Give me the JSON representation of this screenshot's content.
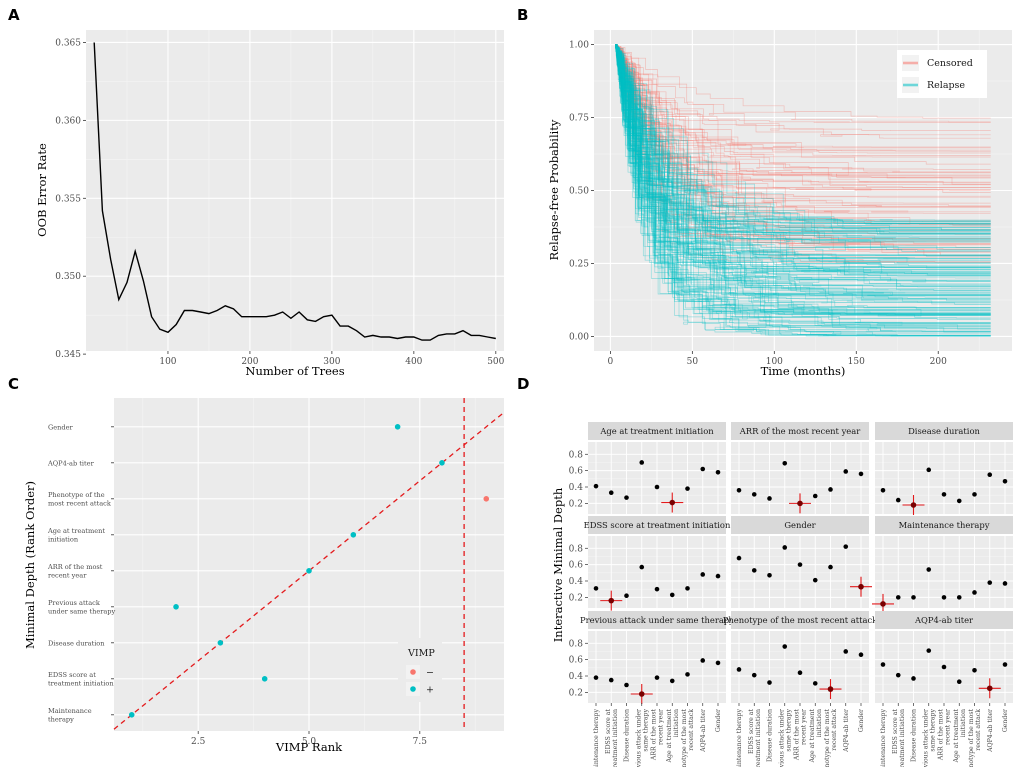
{
  "panels": {
    "A": {
      "letter": "A",
      "chart_data": {
        "type": "line",
        "xlabel": "Number of Trees",
        "ylabel": "OOB Error Rate",
        "xlim": [
          0,
          510
        ],
        "ylim": [
          0.3452,
          0.3658
        ],
        "xticks": [
          100,
          200,
          300,
          400,
          500
        ],
        "yticks": [
          0.345,
          0.35,
          0.355,
          0.36,
          0.365
        ],
        "ytick_labels": [
          "0.345",
          "0.350",
          "0.355",
          "0.360",
          "0.365"
        ],
        "x": [
          10,
          20,
          30,
          40,
          50,
          60,
          70,
          80,
          90,
          100,
          110,
          120,
          130,
          140,
          150,
          160,
          170,
          180,
          190,
          200,
          210,
          220,
          230,
          240,
          250,
          260,
          270,
          280,
          290,
          300,
          310,
          320,
          330,
          340,
          350,
          360,
          370,
          380,
          390,
          400,
          410,
          420,
          430,
          440,
          450,
          460,
          470,
          480,
          490,
          500
        ],
        "y": [
          0.365,
          0.3542,
          0.3511,
          0.3485,
          0.3496,
          0.3516,
          0.3497,
          0.3474,
          0.3466,
          0.3464,
          0.3469,
          0.3478,
          0.3478,
          0.3477,
          0.3476,
          0.3478,
          0.3481,
          0.3479,
          0.3474,
          0.3474,
          0.3474,
          0.3474,
          0.3475,
          0.3477,
          0.3473,
          0.3477,
          0.3472,
          0.3471,
          0.3474,
          0.3475,
          0.3468,
          0.3468,
          0.3465,
          0.3461,
          0.3462,
          0.3461,
          0.3461,
          0.346,
          0.3461,
          0.3461,
          0.3459,
          0.3459,
          0.3462,
          0.3463,
          0.3463,
          0.3465,
          0.3462,
          0.3462,
          0.3461,
          0.346
        ]
      }
    },
    "B": {
      "letter": "B",
      "chart_data": {
        "type": "line",
        "xlabel": "Time (months)",
        "ylabel": "Relapse-free Probability",
        "xlim": [
          -10,
          245
        ],
        "ylim": [
          -0.05,
          1.05
        ],
        "xticks": [
          0,
          50,
          100,
          150,
          200
        ],
        "yticks": [
          0,
          0.25,
          0.5,
          0.75,
          1.0
        ],
        "ytick_labels": [
          "0.00",
          "0.25",
          "0.50",
          "0.75",
          "1.00"
        ],
        "legend": [
          {
            "label": "Censored",
            "color": "#F8766D"
          },
          {
            "label": "Relapse",
            "color": "#00BFC4"
          }
        ],
        "legend_position": "top-right",
        "series_groups": [
          {
            "name": "Censored",
            "color": "#F8766D",
            "count": 70,
            "plateau_min": 0.25,
            "plateau_max": 0.76
          },
          {
            "name": "Relapse",
            "color": "#00BFC4",
            "count": 160,
            "plateau_min": 0.0,
            "plateau_max": 0.4
          }
        ],
        "x_start": 3,
        "x_end": 232
      }
    },
    "C": {
      "letter": "C",
      "chart_data": {
        "type": "scatter",
        "xlabel": "VIMP Rank",
        "ylabel": "Minimal Depth (Rank Order)",
        "xlim": [
          0.6,
          9.4
        ],
        "ylim": [
          0.55,
          9.8
        ],
        "xticks": [
          2.5,
          5.0,
          7.5
        ],
        "xtick_labels": [
          "2.5",
          "5.0",
          "7.5"
        ],
        "categories": [
          "Maintenance therapy",
          "EDSS score at treatment initiation",
          "Disease duration",
          "Previous attack under same therapy",
          "ARR of the most recent year",
          "Age at treatment initiation",
          "Phenotype of the most recent attack",
          "AQP4-ab titer",
          "Gender"
        ],
        "ytick_labels": [
          [
            "Maintenance",
            "therapy"
          ],
          [
            "EDSS score at",
            "treatment initiation"
          ],
          [
            "Disease duration"
          ],
          [
            "Previous attack",
            "under same therapy"
          ],
          [
            "ARR of the most",
            "recent year"
          ],
          [
            "Age at treatment",
            "initiation"
          ],
          [
            "Phenotype of the",
            "most recent attack"
          ],
          [
            "AQP4-ab titer"
          ],
          [
            "Gender"
          ]
        ],
        "points": [
          {
            "x": 1,
            "y": 1,
            "vimp": "+"
          },
          {
            "x": 4,
            "y": 2,
            "vimp": "+"
          },
          {
            "x": 3,
            "y": 3,
            "vimp": "+"
          },
          {
            "x": 2,
            "y": 4,
            "vimp": "+"
          },
          {
            "x": 5,
            "y": 5,
            "vimp": "+"
          },
          {
            "x": 6,
            "y": 6,
            "vimp": "+"
          },
          {
            "x": 9,
            "y": 7,
            "vimp": "−"
          },
          {
            "x": 8,
            "y": 8,
            "vimp": "+"
          },
          {
            "x": 7,
            "y": 9,
            "vimp": "+"
          }
        ],
        "diagonal_line": {
          "color": "#E41A1C",
          "style": "dashed"
        },
        "vertical_line": {
          "x": 8.5,
          "color": "#E41A1C",
          "style": "dashed"
        },
        "legend": {
          "title": "VIMP",
          "entries": [
            {
              "label": "−",
              "color": "#F8766D"
            },
            {
              "label": "+",
              "color": "#00BFC4"
            }
          ]
        }
      }
    },
    "D": {
      "letter": "D",
      "chart_data": {
        "type": "scatter",
        "ylabel": "Interactive Minimal Depth",
        "yticks": [
          0.2,
          0.4,
          0.6,
          0.8
        ],
        "ytick_labels": [
          "0.2",
          "0.4",
          "0.6",
          "0.8"
        ],
        "ylim": [
          0.07,
          0.95
        ],
        "variables": [
          "Maintenance therapy",
          "EDSS score at treatment initiation",
          "Disease duration",
          "Previous attack under same therapy",
          "ARR of the most recent year",
          "Age at treatment initiation",
          "Phenotype of the most recent attack",
          "AQP4-ab titer",
          "Gender"
        ],
        "x_tick_labels": [
          [
            "Maintenance therapy"
          ],
          [
            "EDSS score at",
            "treatment initiation"
          ],
          [
            "Disease duration"
          ],
          [
            "Previous attack under",
            "same therapy"
          ],
          [
            "ARR of the most",
            "recent year"
          ],
          [
            "Age at treatment",
            "initiation"
          ],
          [
            "Phenotype of the most",
            "recent attack"
          ],
          [
            "AQP4-ab titer"
          ],
          [
            "Gender"
          ]
        ],
        "facets": [
          {
            "title": "Age at treatment initiation",
            "values": [
              0.41,
              0.33,
              0.27,
              0.7,
              0.4,
              0.21,
              0.38,
              0.62,
              0.58
            ],
            "highlight_index": 5
          },
          {
            "title": "ARR of the most recent year",
            "values": [
              0.36,
              0.31,
              0.26,
              0.69,
              0.2,
              0.29,
              0.37,
              0.59,
              0.56
            ],
            "highlight_index": 4
          },
          {
            "title": "Disease duration",
            "values": [
              0.36,
              0.24,
              0.18,
              0.61,
              0.31,
              0.23,
              0.31,
              0.55,
              0.47
            ],
            "highlight_index": 2
          },
          {
            "title": "EDSS score at treatment initiation",
            "values": [
              0.31,
              0.16,
              0.22,
              0.57,
              0.3,
              0.23,
              0.31,
              0.48,
              0.46
            ],
            "highlight_index": 1
          },
          {
            "title": "Gender",
            "values": [
              0.68,
              0.53,
              0.47,
              0.81,
              0.6,
              0.41,
              0.57,
              0.82,
              0.33
            ],
            "highlight_index": 8
          },
          {
            "title": "Maintenance therapy",
            "values": [
              0.12,
              0.2,
              0.2,
              0.54,
              0.2,
              0.2,
              0.26,
              0.38,
              0.37
            ],
            "highlight_index": 0
          },
          {
            "title": "Previous attack under same therapy",
            "values": [
              0.38,
              0.35,
              0.29,
              0.18,
              0.38,
              0.34,
              0.42,
              0.59,
              0.56
            ],
            "highlight_index": 3
          },
          {
            "title": "Phenotype of the most recent attack",
            "values": [
              0.48,
              0.41,
              0.32,
              0.76,
              0.44,
              0.31,
              0.24,
              0.7,
              0.66
            ],
            "highlight_index": 6
          },
          {
            "title": "AQP4-ab titer",
            "values": [
              0.54,
              0.41,
              0.37,
              0.71,
              0.51,
              0.33,
              0.47,
              0.25,
              0.54
            ],
            "highlight_index": 7
          }
        ]
      }
    }
  }
}
